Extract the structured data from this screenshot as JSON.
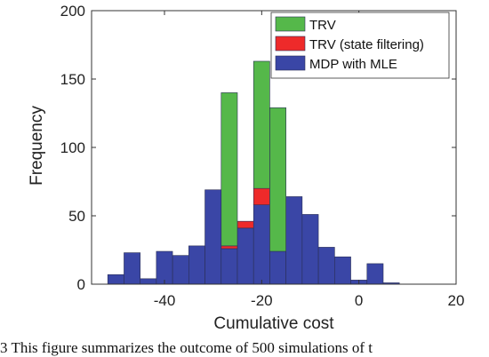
{
  "chart_data": {
    "type": "bar",
    "stacked": true,
    "xlabel": "Cumulative cost",
    "ylabel": "Frequency",
    "xlim": [
      -55,
      20
    ],
    "ylim": [
      0,
      200
    ],
    "xticks": [
      -40,
      -20,
      0,
      20
    ],
    "yticks": [
      0,
      50,
      100,
      150,
      200
    ],
    "grid": false,
    "legend_position": "top-right",
    "bin_width": 3.33,
    "bin_starts": [
      -51.67,
      -48.33,
      -45.0,
      -41.67,
      -38.33,
      -35.0,
      -31.67,
      -28.33,
      -25.0,
      -21.67,
      -18.33,
      -15.0,
      -11.67,
      -8.33,
      -5.0,
      -1.67,
      1.67,
      5.0
    ],
    "series": [
      {
        "name": "MDP with MLE",
        "color": "#3a46a6",
        "values": [
          7,
          23,
          4,
          24,
          21,
          28,
          69,
          26,
          41,
          58,
          24,
          64,
          51,
          27,
          20,
          3,
          15,
          1
        ]
      },
      {
        "name": "TRV (state filtering)",
        "color": "#ee2a2a",
        "values": [
          0,
          0,
          0,
          0,
          0,
          0,
          0,
          2,
          5,
          12,
          0,
          0,
          0,
          0,
          0,
          0,
          0,
          0
        ]
      },
      {
        "name": "TRV",
        "color": "#55b84a",
        "values": [
          0,
          0,
          0,
          0,
          0,
          0,
          0,
          112,
          0,
          93,
          105,
          0,
          0,
          0,
          0,
          0,
          0,
          0
        ]
      }
    ],
    "legend_order": [
      "TRV",
      "TRV (state filtering)",
      "MDP with MLE"
    ]
  },
  "caption": "3    This figure summarizes the outcome of 500 simulations of t"
}
